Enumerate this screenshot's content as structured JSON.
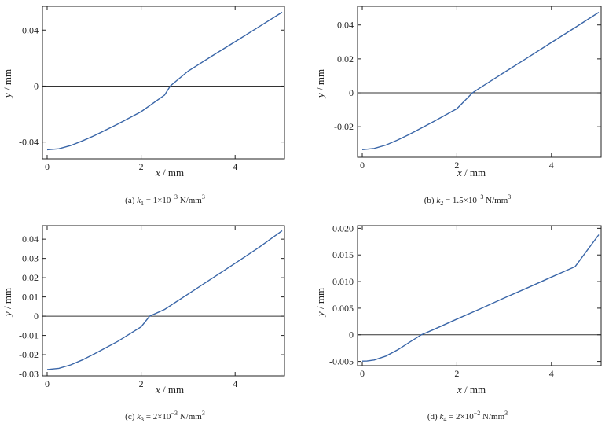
{
  "chart_data": [
    {
      "type": "line",
      "caption": {
        "label": "(a)",
        "var": "k",
        "sub": "1",
        "eq": " = 1×10",
        "exp": "−3",
        "unit": " N/mm",
        "unit_exp": "3"
      },
      "xlabel": {
        "var": "x",
        "unit": " / mm"
      },
      "ylabel": {
        "var": "y",
        "unit": " / mm"
      },
      "xlim": [
        -0.1,
        5.05
      ],
      "ylim": [
        -0.052,
        0.057
      ],
      "xticks": [
        {
          "v": 0,
          "label": "0"
        },
        {
          "v": 2,
          "label": "2"
        },
        {
          "v": 4,
          "label": "4"
        }
      ],
      "yticks": [
        {
          "v": -0.04,
          "label": "-0.04"
        },
        {
          "v": 0,
          "label": "0"
        },
        {
          "v": 0.04,
          "label": "0.04"
        }
      ],
      "baseline": 0,
      "series": [
        {
          "color": "#3a66a8",
          "x": [
            0,
            0.25,
            0.5,
            0.75,
            1.0,
            1.5,
            2.0,
            2.5,
            2.62,
            3.0,
            3.5,
            4.0,
            4.5,
            5.0
          ],
          "y": [
            -0.0455,
            -0.0448,
            -0.0425,
            -0.0392,
            -0.0355,
            -0.0272,
            -0.0183,
            -0.0064,
            0.0,
            0.0107,
            0.0213,
            0.0317,
            0.0422,
            0.0528
          ]
        }
      ]
    },
    {
      "type": "line",
      "caption": {
        "label": "(b)",
        "var": "k",
        "sub": "2",
        "eq": " = 1.5×10",
        "exp": "−3",
        "unit": " N/mm",
        "unit_exp": "3"
      },
      "xlabel": {
        "var": "x",
        "unit": " / mm"
      },
      "ylabel": {
        "var": "y",
        "unit": " / mm"
      },
      "xlim": [
        -0.1,
        5.05
      ],
      "ylim": [
        -0.038,
        0.051
      ],
      "xticks": [
        {
          "v": 0,
          "label": "0"
        },
        {
          "v": 2,
          "label": "2"
        },
        {
          "v": 4,
          "label": "4"
        }
      ],
      "yticks": [
        {
          "v": -0.02,
          "label": "-0.02"
        },
        {
          "v": 0,
          "label": "0"
        },
        {
          "v": 0.02,
          "label": "0.02"
        },
        {
          "v": 0.04,
          "label": "0.04"
        }
      ],
      "baseline": 0,
      "series": [
        {
          "color": "#3a66a8",
          "x": [
            0,
            0.25,
            0.5,
            0.75,
            1.0,
            1.5,
            2.0,
            2.33,
            2.5,
            3.0,
            3.5,
            4.0,
            4.5,
            5.0
          ],
          "y": [
            -0.0335,
            -0.0328,
            -0.0308,
            -0.0278,
            -0.0244,
            -0.0171,
            -0.0094,
            0.0,
            0.0031,
            0.012,
            0.0208,
            0.0297,
            0.0385,
            0.0475
          ]
        }
      ]
    },
    {
      "type": "line",
      "caption": {
        "label": "(c)",
        "var": "k",
        "sub": "3",
        "eq": " = 2×10",
        "exp": "−3",
        "unit": " N/mm",
        "unit_exp": "3"
      },
      "xlabel": {
        "var": "x",
        "unit": " / mm"
      },
      "ylabel": {
        "var": "y",
        "unit": " / mm"
      },
      "xlim": [
        -0.1,
        5.05
      ],
      "ylim": [
        -0.031,
        0.047
      ],
      "xticks": [
        {
          "v": 0,
          "label": "0"
        },
        {
          "v": 2,
          "label": "2"
        },
        {
          "v": 4,
          "label": "4"
        }
      ],
      "yticks": [
        {
          "v": -0.03,
          "label": "-0.03"
        },
        {
          "v": -0.02,
          "label": "-0.02"
        },
        {
          "v": -0.01,
          "label": "-0.01"
        },
        {
          "v": 0,
          "label": "0"
        },
        {
          "v": 0.01,
          "label": "0.01"
        },
        {
          "v": 0.02,
          "label": "0.02"
        },
        {
          "v": 0.03,
          "label": "0.03"
        },
        {
          "v": 0.04,
          "label": "0.04"
        }
      ],
      "baseline": 0,
      "series": [
        {
          "color": "#3a66a8",
          "x": [
            0,
            0.25,
            0.5,
            0.75,
            1.0,
            1.5,
            2.0,
            2.18,
            2.5,
            3.0,
            3.5,
            4.0,
            4.5,
            5.0
          ],
          "y": [
            -0.0277,
            -0.0271,
            -0.0253,
            -0.0227,
            -0.0196,
            -0.0131,
            -0.0055,
            0.0,
            0.0035,
            0.0115,
            0.0195,
            0.0275,
            0.0356,
            0.0444
          ]
        }
      ]
    },
    {
      "type": "line",
      "caption": {
        "label": "(d)",
        "var": "k",
        "sub": "4",
        "eq": " = 2×10",
        "exp": "−2",
        "unit": " N/mm",
        "unit_exp": "3"
      },
      "xlabel": {
        "var": "x",
        "unit": " / mm"
      },
      "ylabel": {
        "var": "y",
        "unit": " / mm"
      },
      "xlim": [
        -0.1,
        5.05
      ],
      "ylim": [
        -0.0058,
        0.0205
      ],
      "xticks": [
        {
          "v": 0,
          "label": "0"
        },
        {
          "v": 2,
          "label": "2"
        },
        {
          "v": 4,
          "label": "4"
        }
      ],
      "yticks": [
        {
          "v": -0.005,
          "label": "-0.005"
        },
        {
          "v": 0,
          "label": "0"
        },
        {
          "v": 0.005,
          "label": "0.005"
        },
        {
          "v": 0.01,
          "label": "0.010"
        },
        {
          "v": 0.015,
          "label": "0.015"
        },
        {
          "v": 0.02,
          "label": "0.020"
        }
      ],
      "baseline": 0,
      "series": [
        {
          "color": "#3a66a8",
          "x": [
            0,
            0.1,
            0.25,
            0.5,
            0.75,
            1.0,
            1.25,
            1.5,
            2.0,
            2.5,
            3.0,
            3.5,
            4.0,
            4.5,
            5.0
          ],
          "y": [
            -0.00495,
            -0.00493,
            -0.00473,
            -0.004,
            -0.00282,
            -0.0014,
            0.0,
            0.00095,
            0.00295,
            0.0049,
            0.0069,
            0.00885,
            0.01085,
            0.0128,
            0.0188
          ]
        }
      ]
    }
  ]
}
